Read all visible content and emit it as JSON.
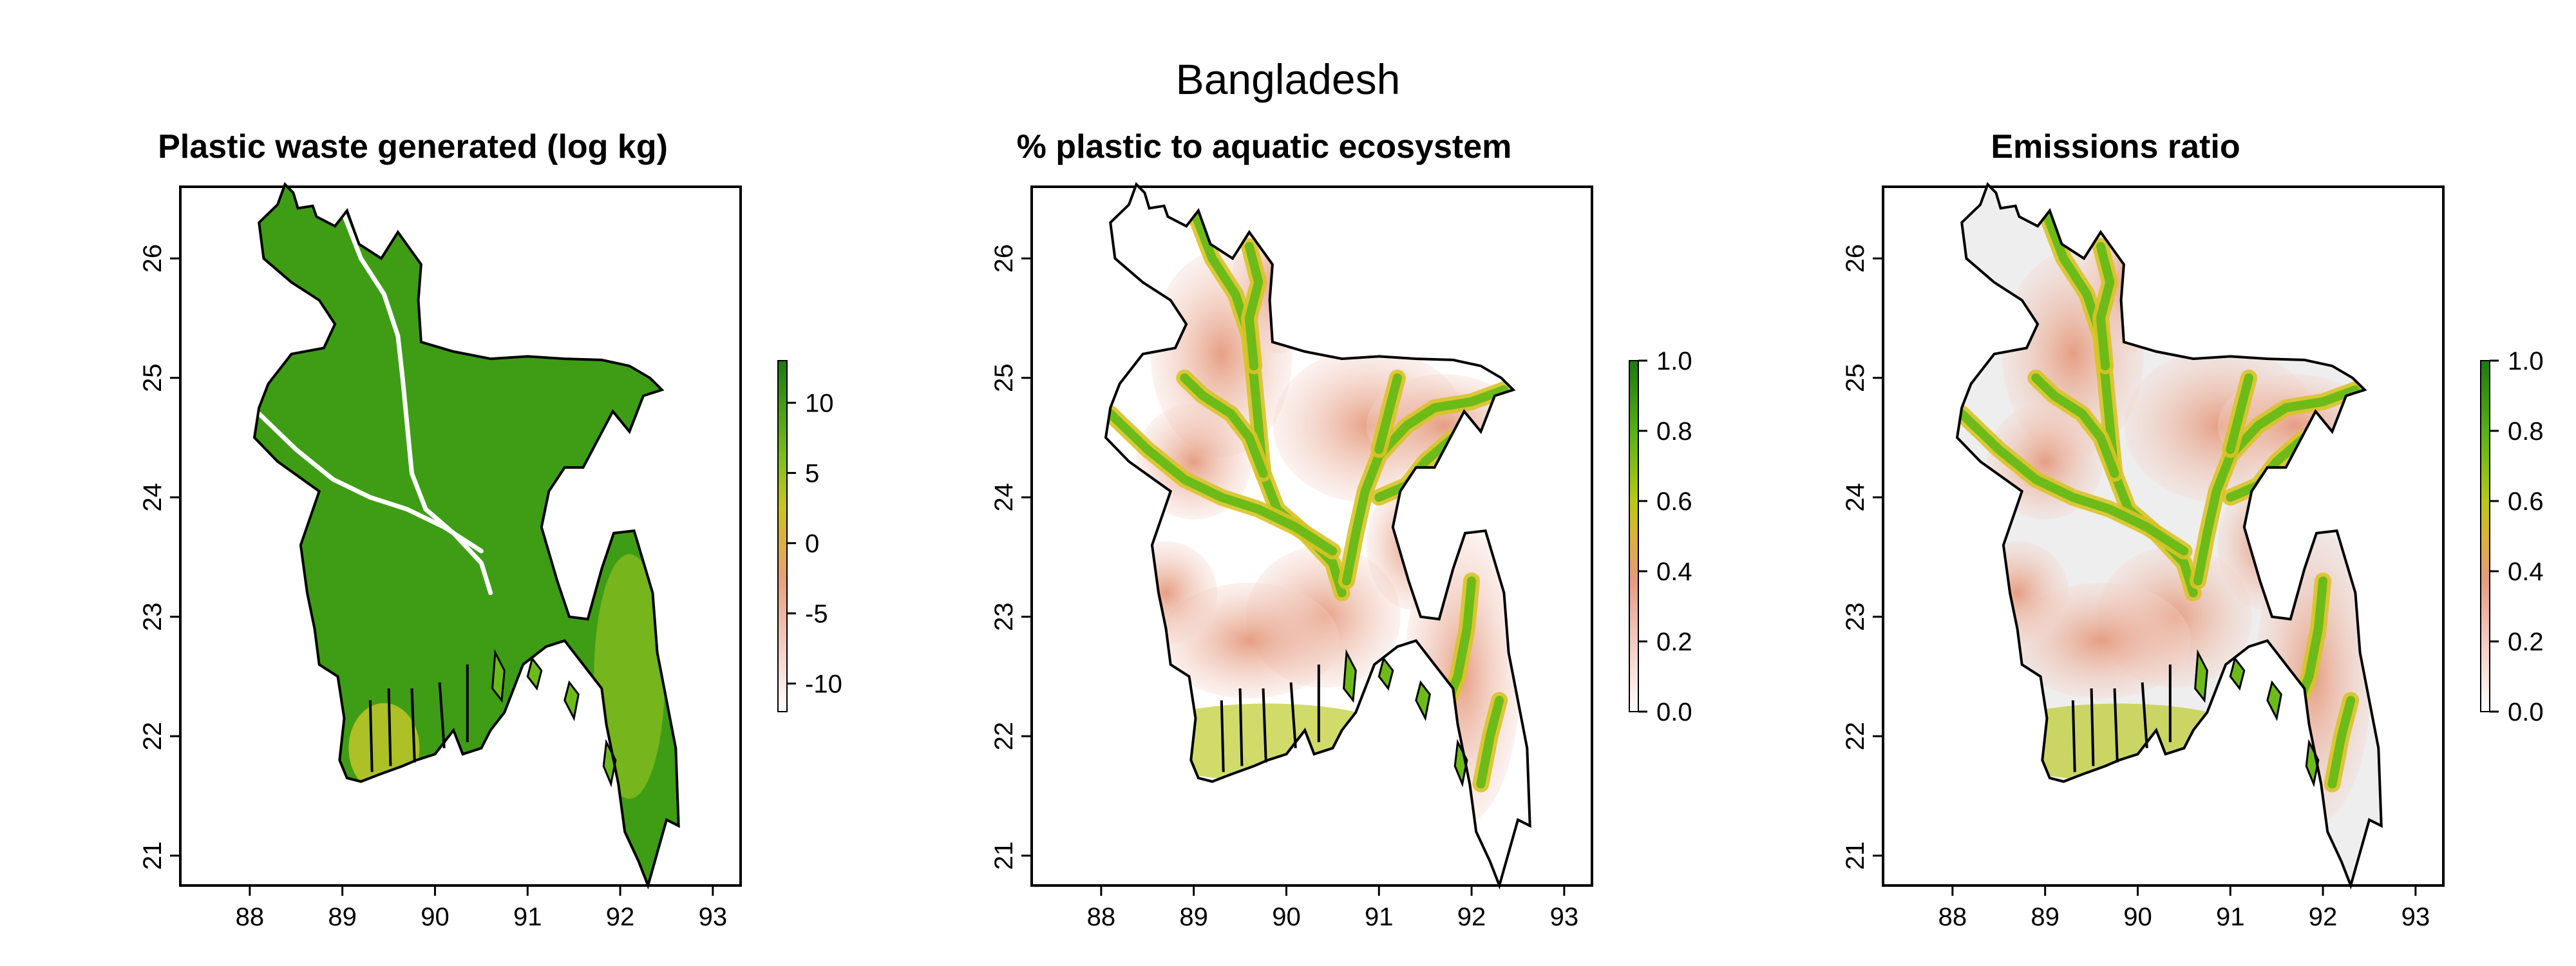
{
  "page": {
    "title": "Bangladesh"
  },
  "colors": {
    "dark_green": "#1a7a10",
    "green": "#44a515",
    "yellow_green": "#a6c918",
    "yellow": "#d6c020",
    "salmon": "#e8a58a",
    "light_pink": "#f7e1dc",
    "white": "#ffffff",
    "outside_gray": "#eeeeee"
  },
  "panels": [
    {
      "title": "Plastic waste generated (log kg)",
      "background": "green-map",
      "x_ticks": [
        "88",
        "89",
        "90",
        "91",
        "92",
        "93"
      ],
      "y_ticks": [
        "21",
        "22",
        "23",
        "24",
        "25",
        "26"
      ],
      "colorbar": {
        "ticks": [
          "10",
          "5",
          "0",
          "-5",
          "-10"
        ],
        "range": [
          -12,
          13
        ]
      }
    },
    {
      "title": "% plastic to aquatic ecosystem",
      "background": "white",
      "x_ticks": [
        "88",
        "89",
        "90",
        "91",
        "92",
        "93"
      ],
      "y_ticks": [
        "21",
        "22",
        "23",
        "24",
        "25",
        "26"
      ],
      "colorbar": {
        "ticks": [
          "1.0",
          "0.8",
          "0.6",
          "0.4",
          "0.2",
          "0.0"
        ],
        "range": [
          0,
          1
        ]
      }
    },
    {
      "title": "Emissions ratio",
      "background": "gray",
      "x_ticks": [
        "88",
        "89",
        "90",
        "91",
        "92",
        "93"
      ],
      "y_ticks": [
        "21",
        "22",
        "23",
        "24",
        "25",
        "26"
      ],
      "colorbar": {
        "ticks": [
          "1.0",
          "0.8",
          "0.6",
          "0.4",
          "0.2",
          "0.0"
        ],
        "range": [
          0,
          1
        ]
      }
    }
  ]
}
